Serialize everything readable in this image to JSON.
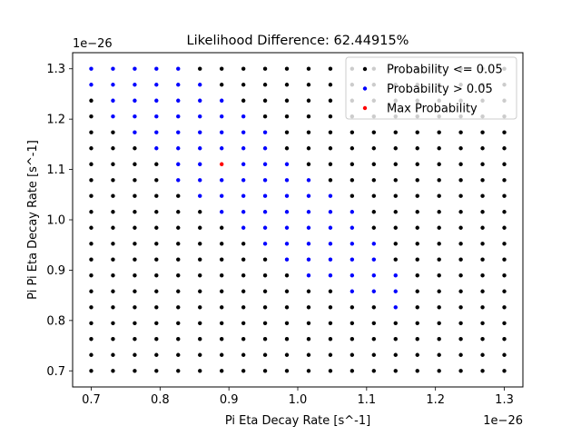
{
  "chart_data": {
    "type": "scatter",
    "title": "Likelihood Difference: 62.44915%",
    "xlabel": "Pi Eta Decay Rate [s^-1]",
    "ylabel": "Pi Pi Eta Decay Rate [s^-1]",
    "x_offset_label": "1e−26",
    "y_offset_label": "1e−26",
    "xlim": [
      0.673,
      1.327
    ],
    "ylim": [
      0.668,
      1.332
    ],
    "x_ticks": [
      0.7,
      0.8,
      0.9,
      1.0,
      1.1,
      1.2,
      1.3
    ],
    "x_tick_labels": [
      "0.7",
      "0.8",
      "0.9",
      "1.0",
      "1.1",
      "1.2",
      "1.3"
    ],
    "y_ticks": [
      0.7,
      0.8,
      0.9,
      1.0,
      1.1,
      1.2,
      1.3
    ],
    "y_tick_labels": [
      "0.7",
      "0.8",
      "0.9",
      "1.0",
      "1.1",
      "1.2",
      "1.3"
    ],
    "grid": false,
    "legend_position": "top-right",
    "grid_points": {
      "x": [
        0.7,
        0.7316,
        0.7632,
        0.7947,
        0.8263,
        0.8579,
        0.8895,
        0.9211,
        0.9526,
        0.9842,
        1.0158,
        1.0474,
        1.0789,
        1.1105,
        1.1421,
        1.1737,
        1.2053,
        1.2368,
        1.2684,
        1.3
      ],
      "y": [
        0.7,
        0.7316,
        0.7632,
        0.7947,
        0.8263,
        0.8579,
        0.8895,
        0.9211,
        0.9526,
        0.9842,
        1.0158,
        1.0474,
        1.0789,
        1.1105,
        1.1421,
        1.1737,
        1.2053,
        1.2368,
        1.2684,
        1.3
      ]
    },
    "series": [
      {
        "name": "Probability <= 0.05",
        "color": "#000000",
        "description_rule": "all grid points not listed in other series"
      },
      {
        "name": "Probability > 0.05",
        "color": "#0000ff",
        "points": [
          [
            0.7,
            1.3
          ],
          [
            0.7316,
            1.3
          ],
          [
            0.7632,
            1.3
          ],
          [
            0.7947,
            1.3
          ],
          [
            0.8263,
            1.3
          ],
          [
            0.7,
            1.2684
          ],
          [
            0.7316,
            1.2684
          ],
          [
            0.7632,
            1.2684
          ],
          [
            0.7947,
            1.2684
          ],
          [
            0.8263,
            1.2684
          ],
          [
            0.8579,
            1.2684
          ],
          [
            0.7316,
            1.2368
          ],
          [
            0.7632,
            1.2368
          ],
          [
            0.7947,
            1.2368
          ],
          [
            0.8263,
            1.2368
          ],
          [
            0.8579,
            1.2368
          ],
          [
            0.8895,
            1.2368
          ],
          [
            0.7316,
            1.2053
          ],
          [
            0.7632,
            1.2053
          ],
          [
            0.7947,
            1.2053
          ],
          [
            0.8263,
            1.2053
          ],
          [
            0.8579,
            1.2053
          ],
          [
            0.8895,
            1.2053
          ],
          [
            0.9211,
            1.2053
          ],
          [
            0.7632,
            1.1737
          ],
          [
            0.7947,
            1.1737
          ],
          [
            0.8263,
            1.1737
          ],
          [
            0.8579,
            1.1737
          ],
          [
            0.8895,
            1.1737
          ],
          [
            0.9211,
            1.1737
          ],
          [
            0.9526,
            1.1737
          ],
          [
            0.7947,
            1.1421
          ],
          [
            0.8263,
            1.1421
          ],
          [
            0.8579,
            1.1421
          ],
          [
            0.8895,
            1.1421
          ],
          [
            0.9211,
            1.1421
          ],
          [
            0.9526,
            1.1421
          ],
          [
            0.8263,
            1.1105
          ],
          [
            0.8579,
            1.1105
          ],
          [
            0.9211,
            1.1105
          ],
          [
            0.9526,
            1.1105
          ],
          [
            0.9842,
            1.1105
          ],
          [
            0.8263,
            1.0789
          ],
          [
            0.8579,
            1.0789
          ],
          [
            0.8895,
            1.0789
          ],
          [
            0.9211,
            1.0789
          ],
          [
            0.9526,
            1.0789
          ],
          [
            0.9842,
            1.0789
          ],
          [
            1.0158,
            1.0789
          ],
          [
            0.8579,
            1.0474
          ],
          [
            0.8895,
            1.0474
          ],
          [
            0.9211,
            1.0474
          ],
          [
            0.9526,
            1.0474
          ],
          [
            0.9842,
            1.0474
          ],
          [
            1.0158,
            1.0474
          ],
          [
            1.0474,
            1.0474
          ],
          [
            0.8895,
            1.0158
          ],
          [
            0.9211,
            1.0158
          ],
          [
            0.9526,
            1.0158
          ],
          [
            0.9842,
            1.0158
          ],
          [
            1.0158,
            1.0158
          ],
          [
            1.0474,
            1.0158
          ],
          [
            1.0789,
            1.0158
          ],
          [
            0.9211,
            0.9842
          ],
          [
            0.9526,
            0.9842
          ],
          [
            0.9842,
            0.9842
          ],
          [
            1.0158,
            0.9842
          ],
          [
            1.0474,
            0.9842
          ],
          [
            1.0789,
            0.9842
          ],
          [
            0.9526,
            0.9526
          ],
          [
            0.9842,
            0.9526
          ],
          [
            1.0158,
            0.9526
          ],
          [
            1.0474,
            0.9526
          ],
          [
            1.0789,
            0.9526
          ],
          [
            1.1105,
            0.9526
          ],
          [
            0.9842,
            0.9211
          ],
          [
            1.0158,
            0.9211
          ],
          [
            1.0474,
            0.9211
          ],
          [
            1.0789,
            0.9211
          ],
          [
            1.1105,
            0.9211
          ],
          [
            1.0158,
            0.8895
          ],
          [
            1.0474,
            0.8895
          ],
          [
            1.0789,
            0.8895
          ],
          [
            1.1105,
            0.8895
          ],
          [
            1.1421,
            0.8895
          ],
          [
            1.0789,
            0.8579
          ],
          [
            1.1105,
            0.8579
          ],
          [
            1.1421,
            0.8579
          ],
          [
            1.1421,
            0.8263
          ]
        ]
      },
      {
        "name": "Max Probability",
        "color": "#ff0000",
        "points": [
          [
            0.8895,
            1.1105
          ]
        ]
      }
    ]
  }
}
